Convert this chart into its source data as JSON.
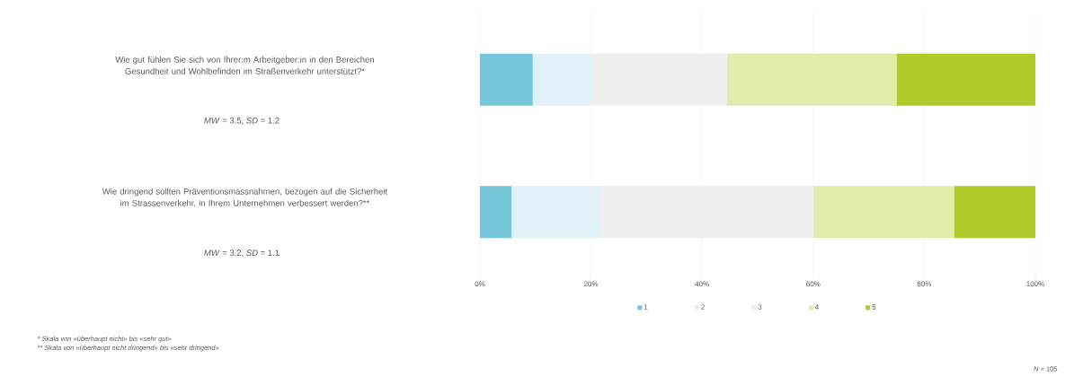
{
  "chart_data": {
    "type": "bar",
    "orientation": "horizontal",
    "stacked": true,
    "categories": [
      "Wie gut fühlen Sie sich von Ihrer:m Arbeitgeber:in in den Bereichen Gesundheit und Wohlbefinden im Straßenverkehr unterstützt?*",
      "Wie dringend sollten Präventionsmassnahmen, bezogen auf die Sicherheit im Strassenverkehr, in Ihrem Unternehmen verbessert werden?**"
    ],
    "series": [
      {
        "name": "1",
        "color": "#77c5d9",
        "values": [
          9.5,
          5.7
        ]
      },
      {
        "name": "2",
        "color": "#e2f1f8",
        "values": [
          10.5,
          16.1
        ]
      },
      {
        "name": "3",
        "color": "#efefef",
        "values": [
          24.5,
          38.2
        ]
      },
      {
        "name": "4",
        "color": "#e0eca8",
        "values": [
          30.5,
          25.4
        ]
      },
      {
        "name": "5",
        "color": "#afca2a",
        "values": [
          25.0,
          14.6
        ]
      }
    ],
    "xlim": [
      0,
      100
    ],
    "xticks": [
      {
        "value": 0,
        "label": "0%"
      },
      {
        "value": 20,
        "label": "20%"
      },
      {
        "value": 40,
        "label": "40%"
      },
      {
        "value": 60,
        "label": "60%"
      },
      {
        "value": 80,
        "label": "80%"
      },
      {
        "value": 100,
        "label": "100%"
      }
    ],
    "grid": "x",
    "legend": "bottom",
    "annotations": [
      "*MW* = 3.5, *SD* = 1.2",
      "*MW* = 3.2, *SD* = 1.1",
      "*   Skala von «überhaupt nicht» bis «sehr gut»",
      "**  Skala von «überhaupt nicht dringend» bis «sehr dringend»",
      "*N* = 105"
    ]
  }
}
